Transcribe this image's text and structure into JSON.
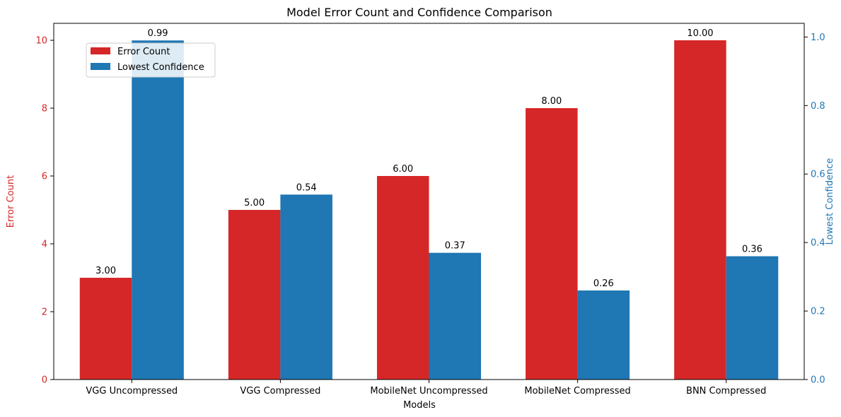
{
  "chart_data": {
    "type": "bar",
    "title": "Model Error Count and Confidence Comparison",
    "xlabel": "Models",
    "categories": [
      "VGG Uncompressed",
      "VGG Compressed",
      "MobileNet Uncompressed",
      "MobileNet Compressed",
      "BNN Compressed"
    ],
    "series": [
      {
        "name": "Error Count",
        "axis": "left",
        "color": "#d62728",
        "values": [
          3,
          5,
          6,
          8,
          10
        ],
        "labels": [
          "3.00",
          "5.00",
          "6.00",
          "8.00",
          "10.00"
        ]
      },
      {
        "name": "Lowest Confidence",
        "axis": "right",
        "color": "#1f77b4",
        "values": [
          0.99,
          0.54,
          0.37,
          0.26,
          0.36
        ],
        "labels": [
          "0.99",
          "0.54",
          "0.37",
          "0.26",
          "0.36"
        ]
      }
    ],
    "y_left": {
      "label": "Error Count",
      "color": "#d62728",
      "ylim": [
        0,
        10.5
      ],
      "ticks": [
        0,
        2,
        4,
        6,
        8,
        10
      ],
      "tick_labels": [
        "0",
        "2",
        "4",
        "6",
        "8",
        "10"
      ]
    },
    "y_right": {
      "label": "Lowest Confidence",
      "color": "#1f77b4",
      "ylim": [
        0,
        1.04
      ],
      "ticks": [
        0,
        0.2,
        0.4,
        0.6,
        0.8,
        1.0
      ],
      "tick_labels": [
        "0.0",
        "0.2",
        "0.4",
        "0.6",
        "0.8",
        "1.0"
      ]
    },
    "legend": {
      "placement": "upper-left",
      "entries": [
        "Error Count",
        "Lowest Confidence"
      ]
    },
    "grid": false
  }
}
